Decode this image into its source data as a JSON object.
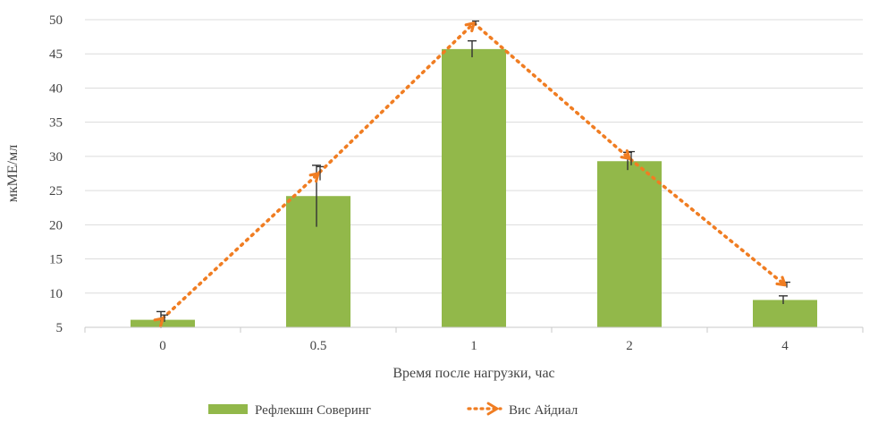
{
  "chart_data": {
    "type": "bar",
    "categories": [
      "0",
      "0.5",
      "1",
      "2",
      "4"
    ],
    "series": [
      {
        "name": "Рефлекшн Соверинг",
        "kind": "bar",
        "color": "#92b84a",
        "values": [
          6.1,
          24.2,
          45.7,
          29.3,
          9.0
        ],
        "error": [
          1.2,
          4.5,
          1.2,
          1.3,
          0.6
        ]
      },
      {
        "name": "Вис Айдиал",
        "kind": "line-dotted",
        "color": "#f07d22",
        "values": [
          6.3,
          27.5,
          49.5,
          29.7,
          11.2
        ],
        "error": [
          0.5,
          1.0,
          0.3,
          1.0,
          0.4
        ]
      }
    ],
    "xlabel": "Время после нагрузки, час",
    "ylabel": "мкМЕ/мл",
    "ylim": [
      5,
      50
    ],
    "yticks": [
      5,
      10,
      15,
      20,
      25,
      30,
      35,
      40,
      45,
      50
    ],
    "grid": true,
    "legend": "bottom"
  }
}
